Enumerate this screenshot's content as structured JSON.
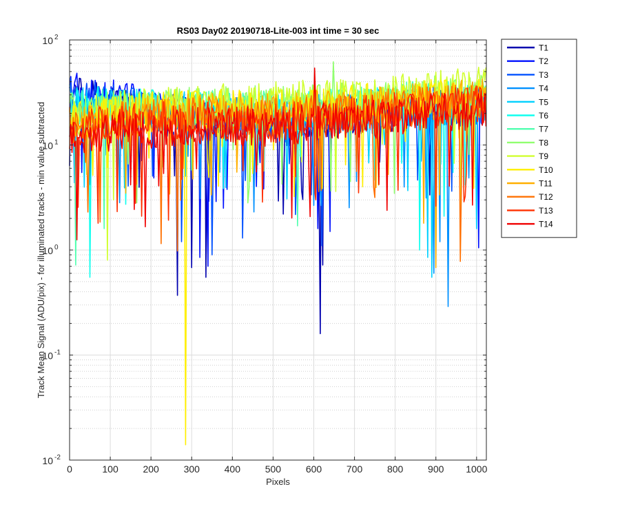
{
  "chart_data": {
    "type": "line",
    "title": "RS03 Day02 20190718-Lite-003 int time = 30 sec",
    "xlabel": "Pixels",
    "ylabel": "Track Mean Signal (ADU/pix) - for illuminated tracks - min value subtracted",
    "xlim": [
      0,
      1024
    ],
    "ylim": [
      0.01,
      100
    ],
    "yscale": "log",
    "grid": true,
    "minor_grid": true,
    "legend_position": "outside-top-right",
    "x_ticks": [
      0,
      100,
      200,
      300,
      400,
      500,
      600,
      700,
      800,
      900,
      1000
    ],
    "x_tick_labels": [
      "0",
      "100",
      "200",
      "300",
      "400",
      "500",
      "600",
      "700",
      "800",
      "900",
      "1000"
    ],
    "y_ticks": [
      0.01,
      0.1,
      1,
      10,
      100
    ],
    "y_tick_labels": [
      {
        "base": "10",
        "exp": "-2"
      },
      {
        "base": "10",
        "exp": "-1"
      },
      {
        "base": "10",
        "exp": "0"
      },
      {
        "base": "10",
        "exp": "1"
      },
      {
        "base": "10",
        "exp": "2"
      }
    ],
    "series": [
      {
        "name": "T1",
        "color": "#0000ae",
        "base": [
          30,
          18,
          14,
          20,
          24
        ],
        "dips": [
          [
            265,
            0.37
          ],
          [
            300,
            0.68
          ],
          [
            335,
            0.55
          ],
          [
            616,
            0.16
          ],
          [
            622,
            0.72
          ]
        ]
      },
      {
        "name": "T2",
        "color": "#0010ff",
        "base": [
          32,
          20,
          17,
          22,
          26
        ],
        "dips": [
          [
            320,
            0.85
          ],
          [
            340,
            0.7
          ],
          [
            610,
            1.6
          ],
          [
            640,
            1.5
          ],
          [
            1005,
            1.05
          ]
        ]
      },
      {
        "name": "T3",
        "color": "#0050ff",
        "base": [
          28,
          19,
          16,
          20,
          24
        ],
        "dips": [
          [
            275,
            1.2
          ],
          [
            350,
            0.9
          ],
          [
            425,
            1.3
          ],
          [
            620,
            1.1
          ]
        ]
      },
      {
        "name": "T4",
        "color": "#0090ff",
        "base": [
          26,
          20,
          18,
          22,
          24
        ],
        "dips": [
          [
            930,
            0.29
          ],
          [
            895,
            0.6
          ],
          [
            910,
            1.2
          ]
        ]
      },
      {
        "name": "T5",
        "color": "#00d0ff",
        "base": [
          25,
          21,
          19,
          23,
          25
        ],
        "dips": [
          [
            890,
            0.55
          ],
          [
            880,
            0.85
          ],
          [
            1000,
            1.6
          ]
        ]
      },
      {
        "name": "T6",
        "color": "#10ffef",
        "base": [
          24,
          22,
          20,
          24,
          27
        ],
        "dips": [
          [
            50,
            0.55
          ],
          [
            860,
            1.0
          ],
          [
            920,
            2.1
          ]
        ]
      },
      {
        "name": "T7",
        "color": "#50ffaf",
        "base": [
          22,
          22,
          21,
          25,
          29
        ],
        "dips": [
          [
            15,
            0.72
          ],
          [
            85,
            1.6
          ],
          [
            560,
            1.7
          ]
        ]
      },
      {
        "name": "T8",
        "color": "#90ff6f",
        "base": [
          20,
          23,
          24,
          27,
          32
        ],
        "dips": [
          [
            648,
            62
          ],
          [
            690,
            4.5
          ]
        ]
      },
      {
        "name": "T9",
        "color": "#d0ff2f",
        "base": [
          18,
          24,
          26,
          30,
          36
        ],
        "dips": [
          [
            1018,
            52
          ],
          [
            93,
            0.8
          ],
          [
            960,
            2.5
          ]
        ]
      },
      {
        "name": "T10",
        "color": "#ffef00",
        "base": [
          17,
          22,
          22,
          26,
          30
        ],
        "dips": [
          [
            285,
            0.014
          ],
          [
            720,
            4.0
          ]
        ]
      },
      {
        "name": "T11",
        "color": "#ffaf00",
        "base": [
          16,
          20,
          20,
          24,
          28
        ],
        "dips": [
          [
            900,
            0.68
          ],
          [
            870,
            1.8
          ]
        ]
      },
      {
        "name": "T12",
        "color": "#ff7000",
        "base": [
          15,
          19,
          18,
          22,
          26
        ],
        "dips": [
          [
            225,
            1.15
          ],
          [
            265,
            0.98
          ],
          [
            45,
            2.3
          ],
          [
            960,
            0.78
          ]
        ]
      },
      {
        "name": "T13",
        "color": "#ff3000",
        "base": [
          14,
          17,
          16,
          20,
          24
        ],
        "dips": [
          [
            70,
            1.8
          ],
          [
            605,
            3.0
          ],
          [
            710,
            3.5
          ]
        ]
      },
      {
        "name": "T14",
        "color": "#f00000",
        "base": [
          12,
          15,
          15,
          18,
          22
        ],
        "dips": [
          [
            602,
            54
          ],
          [
            18,
            1.25
          ],
          [
            760,
            4.2
          ]
        ]
      }
    ]
  }
}
